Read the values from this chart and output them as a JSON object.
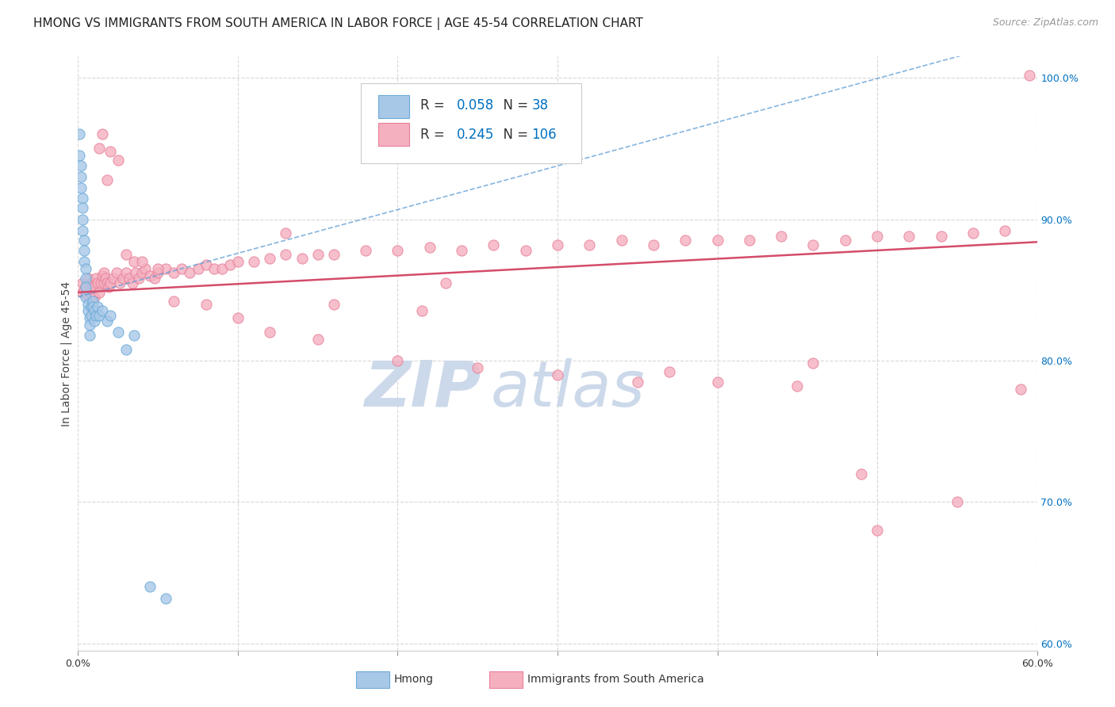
{
  "title": "HMONG VS IMMIGRANTS FROM SOUTH AMERICA IN LABOR FORCE | AGE 45-54 CORRELATION CHART",
  "source": "Source: ZipAtlas.com",
  "ylabel": "In Labor Force | Age 45-54",
  "xlim": [
    0.0,
    0.6
  ],
  "ylim": [
    0.595,
    1.015
  ],
  "xticks": [
    0.0,
    0.1,
    0.2,
    0.3,
    0.4,
    0.5,
    0.6
  ],
  "xticklabels": [
    "0.0%",
    "",
    "",
    "",
    "",
    "",
    "60.0%"
  ],
  "yticks_right": [
    0.6,
    0.7,
    0.8,
    0.9,
    1.0
  ],
  "ytick_right_labels": [
    "60.0%",
    "70.0%",
    "80.0%",
    "90.0%",
    "100.0%"
  ],
  "grid_color": "#d8d8d8",
  "background_color": "#ffffff",
  "hmong_color": "#a8c8e8",
  "hmong_edge_color": "#6aaad8",
  "south_america_color": "#f4b0bf",
  "south_america_edge_color": "#e8809a",
  "hmong_R": 0.058,
  "hmong_N": 38,
  "south_america_R": 0.245,
  "south_america_N": 106,
  "legend_color": "#0070c0",
  "title_fontsize": 11,
  "source_fontsize": 9,
  "axis_label_fontsize": 10,
  "tick_fontsize": 9,
  "legend_fontsize": 12,
  "watermark_color": "#ccd9ea",
  "hmong_x": [
    0.001,
    0.001,
    0.002,
    0.002,
    0.002,
    0.003,
    0.003,
    0.003,
    0.003,
    0.004,
    0.004,
    0.004,
    0.005,
    0.005,
    0.005,
    0.005,
    0.006,
    0.006,
    0.007,
    0.007,
    0.007,
    0.008,
    0.008,
    0.009,
    0.009,
    0.01,
    0.01,
    0.011,
    0.012,
    0.013,
    0.015,
    0.018,
    0.02,
    0.025,
    0.03,
    0.035,
    0.045,
    0.055
  ],
  "hmong_y": [
    0.96,
    0.945,
    0.938,
    0.93,
    0.922,
    0.915,
    0.908,
    0.9,
    0.892,
    0.885,
    0.878,
    0.87,
    0.865,
    0.858,
    0.852,
    0.845,
    0.84,
    0.835,
    0.83,
    0.825,
    0.818,
    0.838,
    0.832,
    0.842,
    0.838,
    0.835,
    0.828,
    0.832,
    0.838,
    0.832,
    0.835,
    0.828,
    0.832,
    0.82,
    0.808,
    0.818,
    0.64,
    0.632
  ],
  "sa_x": [
    0.003,
    0.003,
    0.004,
    0.005,
    0.006,
    0.006,
    0.007,
    0.007,
    0.008,
    0.008,
    0.009,
    0.009,
    0.01,
    0.01,
    0.011,
    0.012,
    0.013,
    0.014,
    0.015,
    0.016,
    0.016,
    0.017,
    0.018,
    0.019,
    0.02,
    0.022,
    0.024,
    0.026,
    0.028,
    0.03,
    0.032,
    0.034,
    0.036,
    0.038,
    0.04,
    0.042,
    0.045,
    0.048,
    0.05,
    0.055,
    0.06,
    0.065,
    0.07,
    0.075,
    0.08,
    0.085,
    0.09,
    0.095,
    0.1,
    0.11,
    0.12,
    0.13,
    0.14,
    0.15,
    0.16,
    0.18,
    0.2,
    0.22,
    0.24,
    0.26,
    0.28,
    0.3,
    0.32,
    0.34,
    0.36,
    0.38,
    0.4,
    0.42,
    0.44,
    0.46,
    0.48,
    0.5,
    0.52,
    0.54,
    0.56,
    0.58,
    0.595,
    0.013,
    0.015,
    0.018,
    0.02,
    0.025,
    0.03,
    0.035,
    0.04,
    0.05,
    0.06,
    0.08,
    0.1,
    0.12,
    0.15,
    0.2,
    0.25,
    0.3,
    0.35,
    0.4,
    0.45,
    0.5,
    0.55,
    0.59,
    0.23,
    0.46,
    0.215,
    0.49,
    0.13,
    0.16,
    0.37
  ],
  "sa_y": [
    0.855,
    0.848,
    0.85,
    0.852,
    0.845,
    0.858,
    0.852,
    0.845,
    0.855,
    0.848,
    0.855,
    0.845,
    0.852,
    0.845,
    0.858,
    0.855,
    0.848,
    0.855,
    0.86,
    0.855,
    0.862,
    0.858,
    0.855,
    0.852,
    0.855,
    0.858,
    0.862,
    0.855,
    0.858,
    0.862,
    0.858,
    0.855,
    0.862,
    0.858,
    0.862,
    0.865,
    0.86,
    0.858,
    0.862,
    0.865,
    0.862,
    0.865,
    0.862,
    0.865,
    0.868,
    0.865,
    0.865,
    0.868,
    0.87,
    0.87,
    0.872,
    0.875,
    0.872,
    0.875,
    0.875,
    0.878,
    0.878,
    0.88,
    0.878,
    0.882,
    0.878,
    0.882,
    0.882,
    0.885,
    0.882,
    0.885,
    0.885,
    0.885,
    0.888,
    0.882,
    0.885,
    0.888,
    0.888,
    0.888,
    0.89,
    0.892,
    1.002,
    0.95,
    0.96,
    0.928,
    0.948,
    0.942,
    0.875,
    0.87,
    0.87,
    0.865,
    0.842,
    0.84,
    0.83,
    0.82,
    0.815,
    0.8,
    0.795,
    0.79,
    0.785,
    0.785,
    0.782,
    0.68,
    0.7,
    0.78,
    0.855,
    0.798,
    0.835,
    0.72,
    0.89,
    0.84,
    0.792
  ]
}
